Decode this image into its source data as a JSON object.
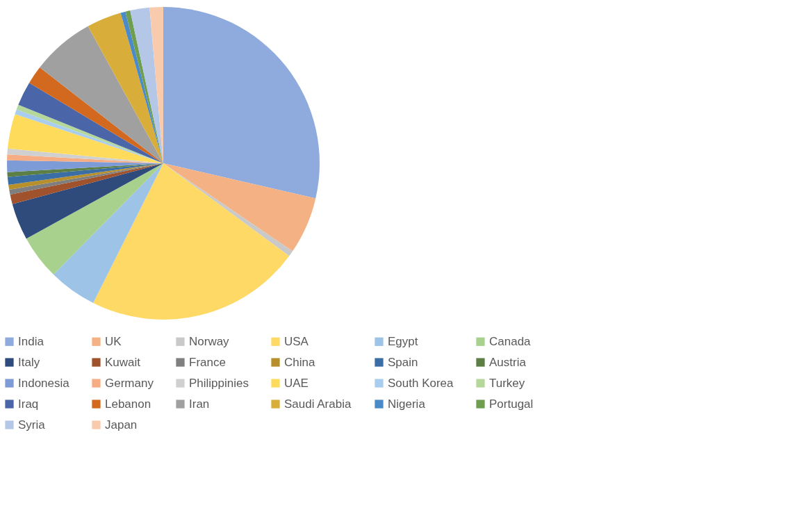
{
  "chart_data": {
    "type": "pie",
    "categories": [
      "India",
      "UK",
      "Norway",
      "USA",
      "Egypt",
      "Canada",
      "Italy",
      "Kuwait",
      "France",
      "China",
      "Spain",
      "Austria",
      "Indonesia",
      "Germany",
      "Philippinies",
      "UAE",
      "South Korea",
      "Turkey",
      "Iraq",
      "Lebanon",
      "Iran",
      "Saudi Arabia",
      "Nigeria",
      "Portugal",
      "Syria",
      "Japan"
    ],
    "values": [
      28.6,
      5.9,
      0.6,
      22.3,
      5.0,
      4.6,
      3.8,
      1.0,
      0.5,
      0.5,
      0.8,
      0.5,
      1.2,
      0.6,
      0.6,
      3.6,
      0.5,
      0.5,
      2.5,
      1.9,
      6.5,
      3.6,
      0.5,
      0.5,
      2.0,
      1.4
    ],
    "colors": [
      "#8faadc",
      "#f4b183",
      "#c9c9c9",
      "#ffd966",
      "#9dc3e6",
      "#a9d18e",
      "#2f4b7c",
      "#a0522d",
      "#7f7f7f",
      "#b8902b",
      "#3a6ea5",
      "#5b7f45",
      "#7d9bd6",
      "#f6ad84",
      "#d0d0d0",
      "#ffdb5c",
      "#a8cdee",
      "#b5d89a",
      "#4a66a8",
      "#d2691e",
      "#a0a0a0",
      "#d9ad3a",
      "#4a8ac9",
      "#6f9e50",
      "#b4c7e7",
      "#f8cbad"
    ],
    "legend": "bottom"
  }
}
